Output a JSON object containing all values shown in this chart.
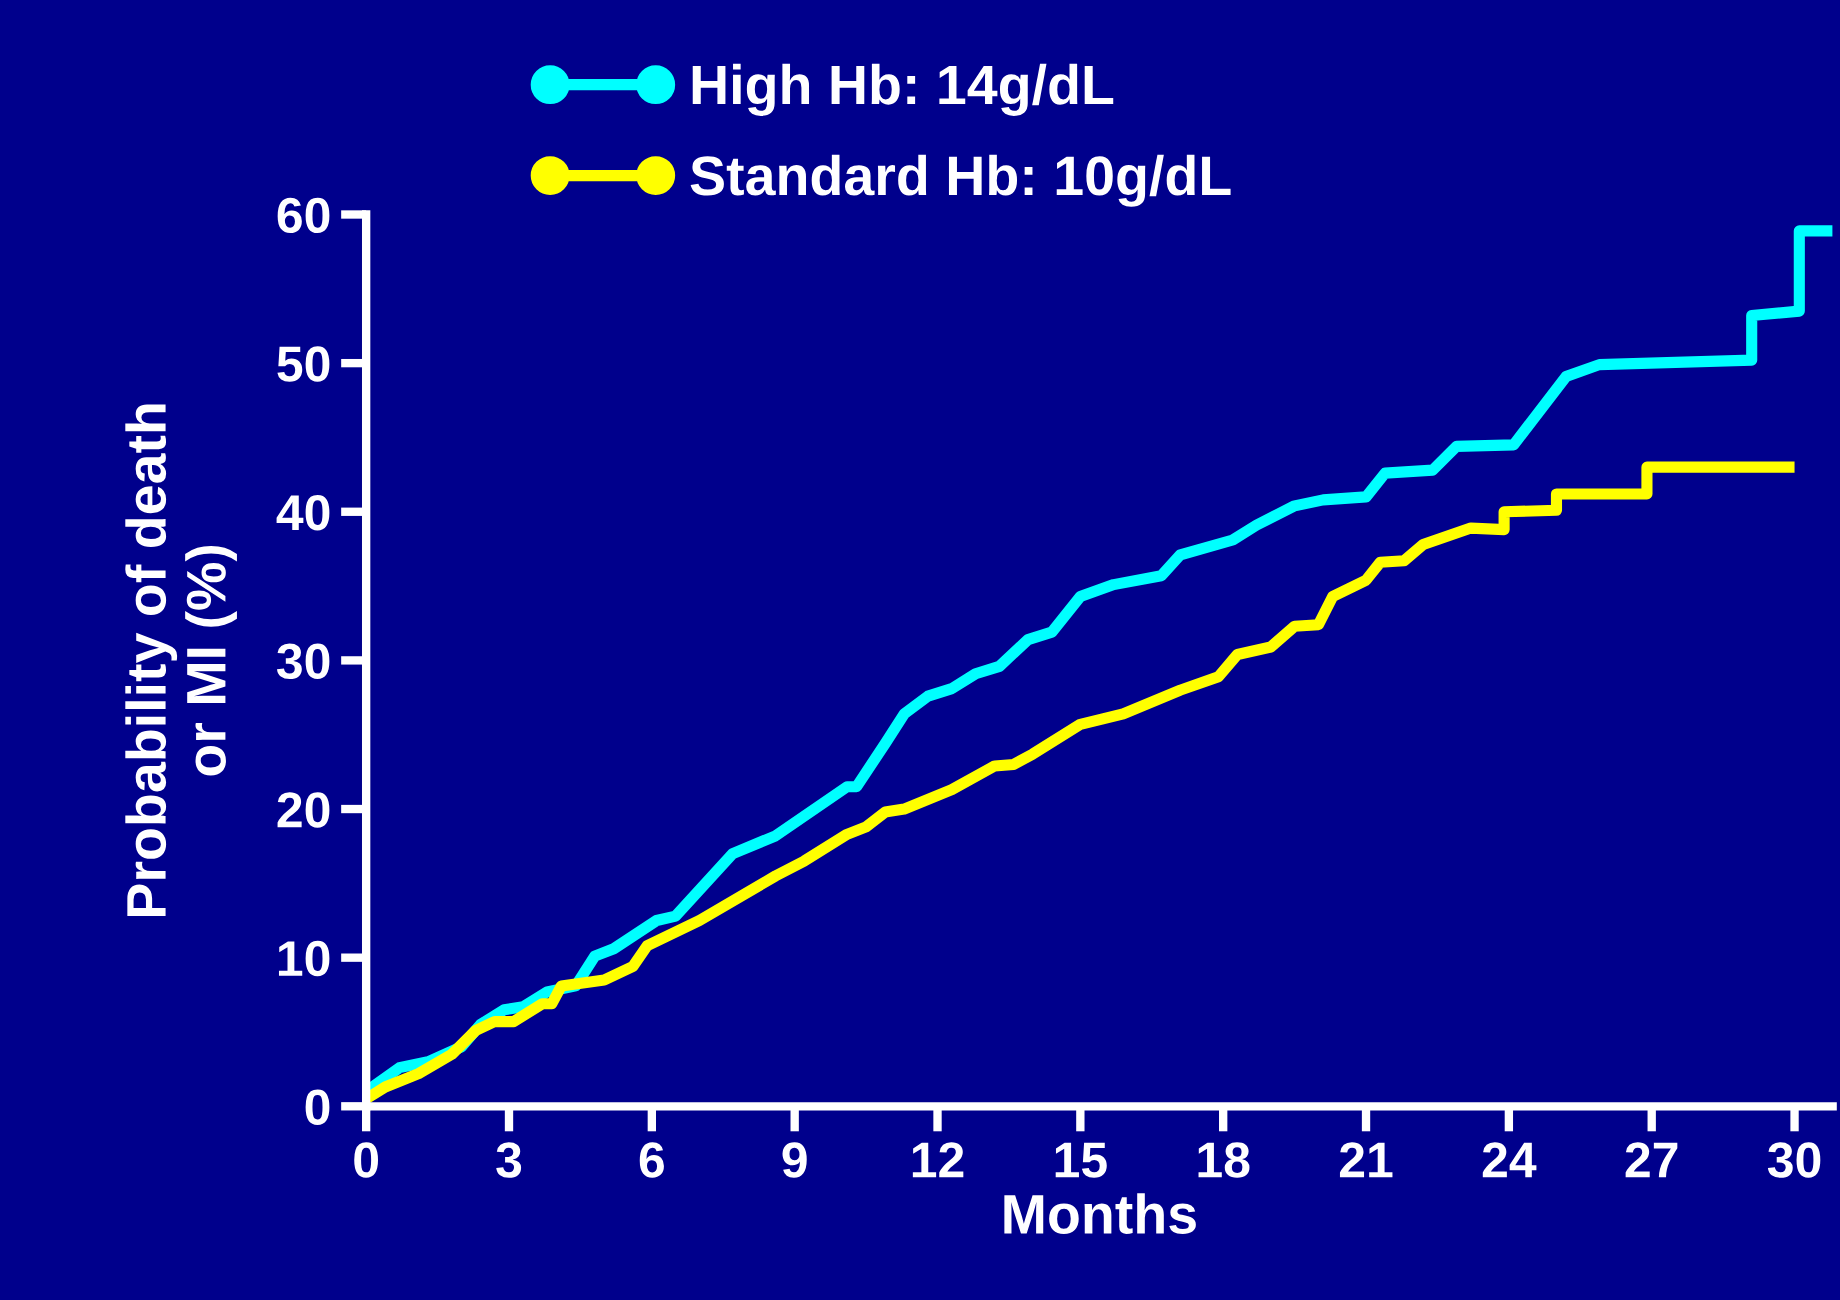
{
  "chart_data": {
    "type": "line",
    "xlabel": "Months",
    "ylabel": "Probability of death\nor MI (%)",
    "xlim": [
      0,
      30.8
    ],
    "xticks": [
      0,
      3,
      6,
      9,
      12,
      15,
      18,
      21,
      24,
      27,
      30
    ],
    "ylim": [
      0,
      60
    ],
    "yticks": [
      0,
      10,
      20,
      30,
      40,
      50,
      60
    ],
    "grid": false,
    "legend": "top",
    "line_style": "solid",
    "series": [
      {
        "name": "High Hb: 14g/dL",
        "color": "#00ffff",
        "x": [
          0,
          0.7,
          1.3,
          2.0,
          2.4,
          2.9,
          3.3,
          3.8,
          4.4,
          4.8,
          5.2,
          6.1,
          6.5,
          7.7,
          8.6,
          10.1,
          10.3,
          10.9,
          11.3,
          11.8,
          12.3,
          12.8,
          13.3,
          13.9,
          14.4,
          15.0,
          15.7,
          16.7,
          17.1,
          18.2,
          18.7,
          19.5,
          20.1,
          21.0,
          21.4,
          22.4,
          22.9,
          24.1,
          25.2,
          25.9,
          29.1,
          29.1,
          30.1,
          30.1,
          30.8
        ],
        "values": [
          1.0,
          2.6,
          3.0,
          4.0,
          5.5,
          6.5,
          6.7,
          7.7,
          8.1,
          10.1,
          10.6,
          12.5,
          12.8,
          17.0,
          18.2,
          21.5,
          21.5,
          24.4,
          26.4,
          27.6,
          28.1,
          29.1,
          29.6,
          31.4,
          31.9,
          34.3,
          35.1,
          35.7,
          37.1,
          38.1,
          39.1,
          40.4,
          40.8,
          41.0,
          42.6,
          42.8,
          44.4,
          44.5,
          49.1,
          49.9,
          50.2,
          53.2,
          53.5,
          58.9,
          58.9
        ]
      },
      {
        "name": "Standard Hb: 10g/dL",
        "color": "#ffff00",
        "x": [
          0,
          0.4,
          1.1,
          1.8,
          2.3,
          2.7,
          3.1,
          3.7,
          3.9,
          4.1,
          5.0,
          5.6,
          5.9,
          7.0,
          8.6,
          9.2,
          10.1,
          10.5,
          10.9,
          11.3,
          12.3,
          13.2,
          13.6,
          14.0,
          15.0,
          15.9,
          17.1,
          17.9,
          18.3,
          19.0,
          19.5,
          20.0,
          20.3,
          21.0,
          21.3,
          21.8,
          22.2,
          23.2,
          23.9,
          23.9,
          25.0,
          25.0,
          26.9,
          26.9,
          30.0
        ],
        "values": [
          0.5,
          1.3,
          2.2,
          3.5,
          5.1,
          5.7,
          5.7,
          6.9,
          6.9,
          8.1,
          8.5,
          9.4,
          10.8,
          12.5,
          15.5,
          16.5,
          18.3,
          18.8,
          19.8,
          20.0,
          21.3,
          22.9,
          23.0,
          23.7,
          25.7,
          26.4,
          28.0,
          28.9,
          30.4,
          30.9,
          32.3,
          32.4,
          34.3,
          35.4,
          36.6,
          36.7,
          37.8,
          38.9,
          38.8,
          40.0,
          40.1,
          41.2,
          41.2,
          43.0,
          43.0
        ]
      }
    ]
  }
}
